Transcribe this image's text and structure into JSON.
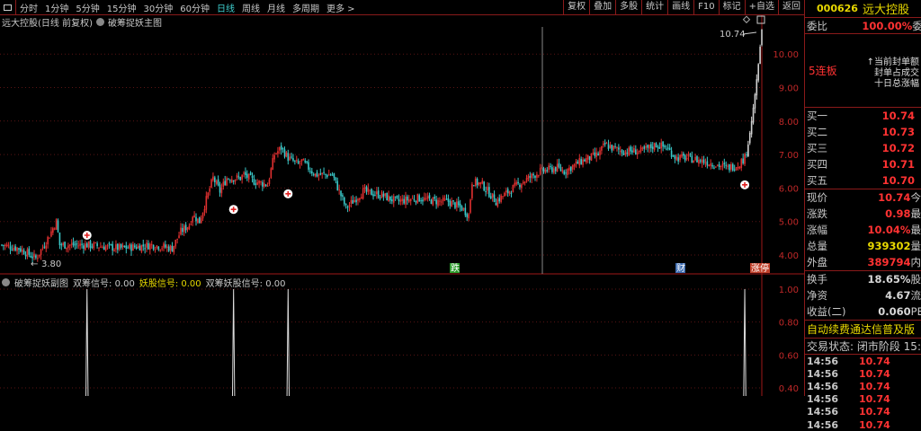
{
  "toolbar": {
    "periods": [
      "分时",
      "1分钟",
      "5分钟",
      "15分钟",
      "30分钟",
      "60分钟",
      "日线",
      "周线",
      "月线",
      "多周期",
      "更多 >"
    ],
    "active_period": "日线",
    "tools": [
      "复权",
      "叠加",
      "多股",
      "统计",
      "画线",
      "F10",
      "标记",
      "+自选",
      "返回"
    ]
  },
  "main_chart": {
    "title": "远大控股(日线 前复权)",
    "indicator": "破筹捉妖主图",
    "y_ticks": [
      "10.00",
      "9.00",
      "8.00",
      "7.00",
      "6.00",
      "5.00",
      "4.00"
    ],
    "high_label": "10.74",
    "low_label": "3.80",
    "event_labels": [
      {
        "text": "跌",
        "color": "#2a9a2a"
      },
      {
        "text": "财",
        "color": "#3a6ab0"
      },
      {
        "text": "涨停",
        "color": "#c0402a"
      }
    ],
    "price_path": [
      [
        0,
        4.3
      ],
      [
        10,
        4.2
      ],
      [
        20,
        3.9
      ],
      [
        26,
        4.4
      ],
      [
        32,
        5.0
      ],
      [
        34,
        4.3
      ],
      [
        50,
        4.3
      ],
      [
        70,
        4.2
      ],
      [
        88,
        4.3
      ],
      [
        100,
        4.2
      ],
      [
        105,
        4.7
      ],
      [
        110,
        4.9
      ],
      [
        112,
        5.2
      ],
      [
        116,
        5.0
      ],
      [
        124,
        6.3
      ],
      [
        128,
        5.9
      ],
      [
        132,
        6.3
      ],
      [
        140,
        6.3
      ],
      [
        142,
        6.4
      ],
      [
        148,
        6.2
      ],
      [
        156,
        6.1
      ],
      [
        160,
        7.0
      ],
      [
        164,
        7.2
      ],
      [
        168,
        6.9
      ],
      [
        174,
        6.7
      ],
      [
        176,
        6.8
      ],
      [
        184,
        6.4
      ],
      [
        194,
        6.4
      ],
      [
        202,
        5.4
      ],
      [
        206,
        5.6
      ],
      [
        212,
        5.9
      ],
      [
        222,
        5.8
      ],
      [
        232,
        5.6
      ],
      [
        244,
        5.7
      ],
      [
        256,
        5.6
      ],
      [
        262,
        5.6
      ],
      [
        270,
        5.4
      ],
      [
        274,
        5.2
      ],
      [
        276,
        6.2
      ],
      [
        282,
        6.1
      ],
      [
        290,
        5.6
      ],
      [
        300,
        6.0
      ],
      [
        306,
        6.2
      ],
      [
        316,
        6.5
      ],
      [
        326,
        6.6
      ],
      [
        330,
        6.5
      ],
      [
        340,
        6.8
      ],
      [
        350,
        7.0
      ],
      [
        354,
        7.3
      ],
      [
        358,
        7.2
      ],
      [
        364,
        7.1
      ],
      [
        376,
        7.1
      ],
      [
        384,
        7.3
      ],
      [
        390,
        7.2
      ],
      [
        396,
        6.9
      ],
      [
        402,
        6.9
      ],
      [
        412,
        6.8
      ],
      [
        426,
        6.6
      ],
      [
        432,
        6.7
      ],
      [
        436,
        6.9
      ],
      [
        438,
        7.3
      ],
      [
        440,
        8.0
      ],
      [
        442,
        8.8
      ],
      [
        444,
        9.7
      ],
      [
        446,
        10.74
      ]
    ],
    "markers_at": [
      50,
      136,
      168,
      436
    ]
  },
  "sub_chart": {
    "indicator": "破筹捉妖副图",
    "signals": [
      {
        "label": "双筹信号:",
        "value": "0.00"
      },
      {
        "label": "妖股信号:",
        "value": "0.00"
      },
      {
        "label": "双筹妖股信号:",
        "value": "0.00"
      }
    ],
    "y_ticks": [
      "1.00",
      "0.80",
      "0.60",
      "0.40"
    ]
  },
  "quote": {
    "code": "000626",
    "name": "远大控股",
    "wb_label": "委比",
    "wb_value": "100.00%",
    "wb_extra": "委差",
    "limit_streak": "5连板",
    "seal_info": [
      "当前封单额",
      "封单占成交",
      "十日总涨幅"
    ],
    "bids": [
      {
        "label": "买一",
        "price": "10.74"
      },
      {
        "label": "买二",
        "price": "10.73"
      },
      {
        "label": "买三",
        "price": "10.72"
      },
      {
        "label": "买四",
        "price": "10.71"
      },
      {
        "label": "买五",
        "price": "10.70"
      }
    ],
    "stats": [
      {
        "label": "现价",
        "value": "10.74",
        "right": "今",
        "color": "#ff3232"
      },
      {
        "label": "涨跌",
        "value": "0.98",
        "right": "最",
        "color": "#ff3232"
      },
      {
        "label": "涨幅",
        "value": "10.04%",
        "right": "最",
        "color": "#ff3232"
      },
      {
        "label": "总量",
        "value": "939302",
        "right": "量",
        "color": "#e8d800"
      },
      {
        "label": "外盘",
        "value": "389794",
        "right": "内",
        "color": "#ff3232"
      }
    ],
    "fund": [
      {
        "label": "换手",
        "value": "18.65%",
        "right": "股"
      },
      {
        "label": "净资",
        "value": "4.67",
        "right": "流"
      },
      {
        "label": "收益(二)",
        "value": "0.060",
        "right": "PE"
      }
    ],
    "promo": "自动续费通达信普及版",
    "trade_status": "交易状态: 闭市阶段 15:",
    "ticks": [
      {
        "time": "14:56",
        "price": "10.74"
      },
      {
        "time": "14:56",
        "price": "10.74"
      },
      {
        "time": "14:56",
        "price": "10.74"
      },
      {
        "time": "14:56",
        "price": "10.74"
      },
      {
        "time": "14:56",
        "price": "10.74"
      },
      {
        "time": "14:56",
        "price": "10.74"
      }
    ]
  }
}
